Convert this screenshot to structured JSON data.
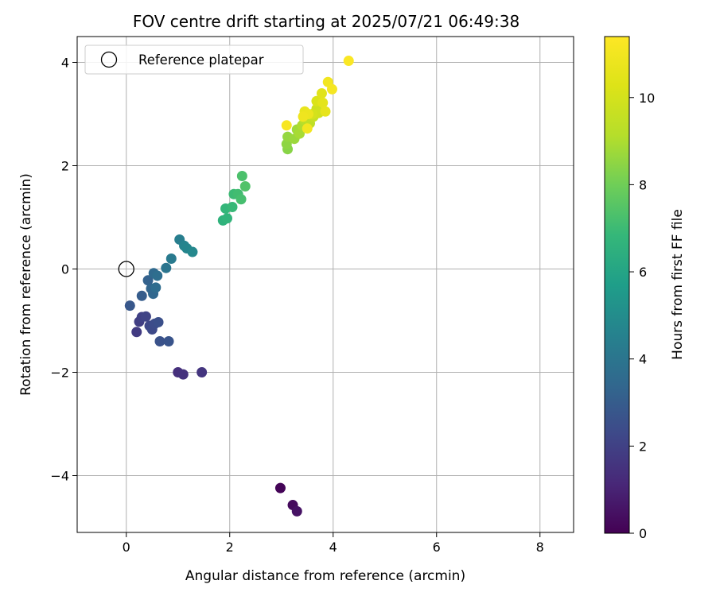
{
  "chart_data": {
    "type": "scatter",
    "title": "FOV centre drift starting at 2025/07/21 06:49:38",
    "xlabel": "Angular distance from reference (arcmin)",
    "ylabel": "Rotation from reference (arcmin)",
    "xlim": [
      -0.95,
      8.65
    ],
    "ylim": [
      -5.1,
      4.5
    ],
    "xticks": [
      0,
      2,
      4,
      6,
      8
    ],
    "yticks": [
      -4,
      -2,
      0,
      2,
      4
    ],
    "xtick_labels": [
      "0",
      "2",
      "4",
      "6",
      "8"
    ],
    "ytick_labels": [
      "−4",
      "−2",
      "0",
      "2",
      "4"
    ],
    "grid": true,
    "colormap": "viridis",
    "colorbar": {
      "label": "Hours from first FF file",
      "range": [
        0,
        11.4
      ],
      "ticks": [
        0,
        2,
        4,
        6,
        8,
        10
      ],
      "tick_labels": [
        "0",
        "2",
        "4",
        "6",
        "8",
        "10"
      ]
    },
    "reference": {
      "name": "Reference platepar",
      "x": 0,
      "y": 0
    },
    "legend": {
      "position": "upper-left",
      "entries": [
        "Reference platepar"
      ]
    },
    "points": [
      {
        "x": 2.98,
        "y": -4.24,
        "t": 0.1
      },
      {
        "x": 3.22,
        "y": -4.57,
        "t": 0.3
      },
      {
        "x": 3.3,
        "y": -4.69,
        "t": 0.5
      },
      {
        "x": 1.0,
        "y": -2.0,
        "t": 1.4
      },
      {
        "x": 1.1,
        "y": -2.04,
        "t": 1.5
      },
      {
        "x": 1.46,
        "y": -2.0,
        "t": 1.6
      },
      {
        "x": 0.2,
        "y": -1.22,
        "t": 1.8
      },
      {
        "x": 0.25,
        "y": -1.02,
        "t": 1.9
      },
      {
        "x": 0.3,
        "y": -0.93,
        "t": 2.0
      },
      {
        "x": 0.38,
        "y": -0.92,
        "t": 2.1
      },
      {
        "x": 0.45,
        "y": -1.1,
        "t": 2.2
      },
      {
        "x": 0.5,
        "y": -1.17,
        "t": 2.3
      },
      {
        "x": 0.55,
        "y": -1.06,
        "t": 2.4
      },
      {
        "x": 0.62,
        "y": -1.03,
        "t": 2.5
      },
      {
        "x": 0.65,
        "y": -1.4,
        "t": 2.6
      },
      {
        "x": 0.82,
        "y": -1.4,
        "t": 2.7
      },
      {
        "x": 0.07,
        "y": -0.71,
        "t": 2.8
      },
      {
        "x": 0.3,
        "y": -0.52,
        "t": 3.0
      },
      {
        "x": 0.42,
        "y": -0.22,
        "t": 3.2
      },
      {
        "x": 0.48,
        "y": -0.38,
        "t": 3.3
      },
      {
        "x": 0.52,
        "y": -0.48,
        "t": 3.4
      },
      {
        "x": 0.53,
        "y": -0.08,
        "t": 3.5
      },
      {
        "x": 0.57,
        "y": -0.36,
        "t": 3.6
      },
      {
        "x": 0.6,
        "y": -0.13,
        "t": 3.7
      },
      {
        "x": 0.77,
        "y": 0.02,
        "t": 4.0
      },
      {
        "x": 0.87,
        "y": 0.2,
        "t": 4.2
      },
      {
        "x": 1.03,
        "y": 0.57,
        "t": 4.4
      },
      {
        "x": 1.12,
        "y": 0.45,
        "t": 4.6
      },
      {
        "x": 1.17,
        "y": 0.4,
        "t": 4.7
      },
      {
        "x": 1.28,
        "y": 0.33,
        "t": 4.8
      },
      {
        "x": 1.87,
        "y": 0.94,
        "t": 6.6
      },
      {
        "x": 1.95,
        "y": 0.98,
        "t": 6.7
      },
      {
        "x": 1.92,
        "y": 1.17,
        "t": 6.8
      },
      {
        "x": 2.05,
        "y": 1.2,
        "t": 6.9
      },
      {
        "x": 2.08,
        "y": 1.45,
        "t": 7.0
      },
      {
        "x": 2.16,
        "y": 1.45,
        "t": 7.1
      },
      {
        "x": 2.22,
        "y": 1.35,
        "t": 7.2
      },
      {
        "x": 2.24,
        "y": 1.8,
        "t": 7.3
      },
      {
        "x": 2.3,
        "y": 1.6,
        "t": 7.4
      },
      {
        "x": 3.12,
        "y": 2.32,
        "t": 8.4
      },
      {
        "x": 3.1,
        "y": 2.42,
        "t": 8.5
      },
      {
        "x": 3.12,
        "y": 2.56,
        "t": 8.6
      },
      {
        "x": 3.25,
        "y": 2.52,
        "t": 8.7
      },
      {
        "x": 3.3,
        "y": 2.7,
        "t": 8.8
      },
      {
        "x": 3.35,
        "y": 2.62,
        "t": 8.9
      },
      {
        "x": 3.4,
        "y": 2.78,
        "t": 9.0
      },
      {
        "x": 3.45,
        "y": 2.88,
        "t": 9.2
      },
      {
        "x": 3.55,
        "y": 2.82,
        "t": 9.4
      },
      {
        "x": 3.62,
        "y": 2.95,
        "t": 9.6
      },
      {
        "x": 3.68,
        "y": 3.1,
        "t": 9.8
      },
      {
        "x": 3.72,
        "y": 3.02,
        "t": 9.9
      },
      {
        "x": 3.6,
        "y": 3.0,
        "t": 10.0
      },
      {
        "x": 3.68,
        "y": 3.25,
        "t": 10.2
      },
      {
        "x": 3.78,
        "y": 3.4,
        "t": 10.4
      },
      {
        "x": 3.8,
        "y": 3.22,
        "t": 10.5
      },
      {
        "x": 3.85,
        "y": 3.05,
        "t": 10.6
      },
      {
        "x": 3.45,
        "y": 3.05,
        "t": 10.7
      },
      {
        "x": 3.52,
        "y": 3.0,
        "t": 10.8
      },
      {
        "x": 3.42,
        "y": 2.95,
        "t": 10.9
      },
      {
        "x": 3.5,
        "y": 2.72,
        "t": 11.0
      },
      {
        "x": 3.9,
        "y": 3.62,
        "t": 11.0
      },
      {
        "x": 3.98,
        "y": 3.48,
        "t": 11.1
      },
      {
        "x": 3.1,
        "y": 2.78,
        "t": 11.2
      },
      {
        "x": 4.3,
        "y": 4.03,
        "t": 11.3
      }
    ]
  }
}
